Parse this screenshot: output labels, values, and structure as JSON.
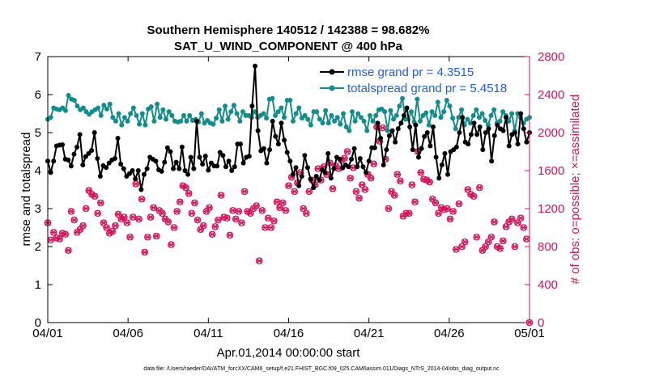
{
  "colors": {
    "rmse": "#000000",
    "totalspread": "#138c8c",
    "obs": "#d4145a",
    "legend_text": "#1f5fe0"
  },
  "chart_data": {
    "type": "line",
    "title": "Southern Hemisphere 140512 / 142388 = 98.682%",
    "subtitle": "SAT_U_WIND_COMPONENT @ 400 hPa",
    "xlabel": "Apr.01,2014 00:00:00 start",
    "ylabel": "rmse and totalspread",
    "y2label": "# of obs: o=possible; ×=assimilated",
    "footnote": "data file: /Users/raeder/DAI/ATM_forcXX/CAM6_setup/f.e21.FHIST_BGC.f09_025.CAM6assim.011/Diags_NTrS_2014-04/obs_diag_output.nc",
    "xlim": [
      0,
      30
    ],
    "ylim": [
      0,
      7
    ],
    "y2lim": [
      0,
      2800
    ],
    "xticks": [
      0,
      5,
      10,
      15,
      20,
      25,
      30
    ],
    "xtick_labels": [
      "04/01",
      "04/06",
      "04/11",
      "04/16",
      "04/21",
      "04/26",
      "05/01"
    ],
    "yticks": [
      0,
      1,
      2,
      3,
      4,
      5,
      6,
      7
    ],
    "ytick_labels": [
      "0",
      "1",
      "2",
      "3",
      "4",
      "5",
      "6",
      "7"
    ],
    "y2ticks": [
      0,
      400,
      800,
      1200,
      1600,
      2000,
      2400,
      2800
    ],
    "y2tick_labels": [
      "0",
      "400",
      "800",
      "1200",
      "1600",
      "2000",
      "2400",
      "2800"
    ],
    "grid": false,
    "legend_position": "top-right",
    "series": [
      {
        "name": "rmse grand pr = 4.3515",
        "axis": "left",
        "marker": "dot",
        "values": [
          4.25,
          3.95,
          4.25,
          4.65,
          4.67,
          4.68,
          4.3,
          4.28,
          4.12,
          4.43,
          4.62,
          4.95,
          4.15,
          4.37,
          4.45,
          4.53,
          5.0,
          4.32,
          3.85,
          4.13,
          4.08,
          4.2,
          4.28,
          4.32,
          4.85,
          4.17,
          4.05,
          3.85,
          3.92,
          4.0,
          3.78,
          4.0,
          3.5,
          3.9,
          4.05,
          4.35,
          4.3,
          4.25,
          4.02,
          3.98,
          4.22,
          4.6,
          4.5,
          4.05,
          4.22,
          4.05,
          4.62,
          4.0,
          3.9,
          4.35,
          4.05,
          5.3,
          4.35,
          4.17,
          4.38,
          4.01,
          4.2,
          4.12,
          4.12,
          4.48,
          4.4,
          4.1,
          4.25,
          4.0,
          4.1,
          4.7,
          4.7,
          4.2,
          4.35,
          4.38,
          5.7,
          6.75,
          5.05,
          4.52,
          4.58,
          4.2,
          4.55,
          5.3,
          4.9,
          4.7,
          5.25,
          4.8,
          4.48,
          4.25,
          3.9,
          4.08,
          3.6,
          3.85,
          4.4,
          4.08,
          3.78,
          3.55,
          3.85,
          3.75,
          4.02,
          3.95,
          4.45,
          3.8,
          4.05,
          4.35,
          4.3,
          4.07,
          4.15,
          4.1,
          4.3,
          4.58,
          4.1,
          4.32,
          4.1,
          3.95,
          4.25,
          4.6,
          4.6,
          5.25,
          4.85,
          4.15,
          4.55,
          4.92,
          5.05,
          4.75,
          5.1,
          5.25,
          5.45,
          5.65,
          5.15,
          4.55,
          5.2,
          4.35,
          4.58,
          4.9,
          5.0,
          4.65,
          5.15,
          4.35,
          3.8,
          4.15,
          4.45,
          3.9,
          4.5,
          4.55,
          4.62,
          5.0,
          5.4,
          4.75,
          4.7,
          4.95,
          5.25,
          4.95,
          5.15,
          4.55,
          5.0,
          5.1,
          4.25,
          4.92,
          5.2,
          5.1,
          5.05,
          5.4,
          4.65,
          4.95,
          5.0,
          4.7,
          5.5,
          5.1,
          4.75,
          5.0
        ]
      },
      {
        "name": "totalspread grand pr = 5.4518",
        "axis": "left",
        "marker": "dot",
        "values": [
          5.35,
          5.4,
          5.65,
          5.62,
          5.6,
          5.65,
          5.58,
          5.98,
          5.88,
          5.85,
          5.7,
          5.6,
          5.65,
          5.55,
          5.48,
          5.55,
          5.6,
          5.65,
          5.45,
          5.72,
          5.62,
          5.75,
          5.4,
          5.3,
          5.5,
          5.2,
          5.4,
          5.3,
          5.5,
          5.65,
          5.45,
          5.22,
          5.5,
          5.2,
          5.62,
          5.68,
          5.3,
          5.75,
          5.4,
          5.6,
          5.35,
          5.55,
          5.45,
          5.3,
          5.28,
          5.3,
          5.45,
          5.3,
          5.45,
          5.32,
          5.35,
          5.28,
          5.5,
          5.25,
          5.32,
          5.25,
          5.22,
          5.38,
          5.6,
          5.3,
          5.7,
          5.35,
          5.55,
          5.72,
          5.5,
          5.3,
          5.55,
          5.45,
          5.45,
          5.4,
          5.55,
          5.4,
          5.45,
          5.5,
          5.38,
          5.88,
          5.9,
          5.45,
          5.55,
          5.65,
          5.4,
          5.85,
          5.85,
          5.3,
          5.5,
          5.65,
          5.38,
          5.45,
          5.35,
          5.2,
          5.55,
          5.55,
          5.35,
          5.25,
          5.58,
          5.25,
          5.45,
          5.3,
          5.4,
          5.22,
          5.5,
          5.15,
          5.05,
          5.55,
          5.3,
          5.5,
          5.4,
          5.3,
          5.05,
          5.45,
          5.3,
          5.45,
          5.6,
          5.62,
          5.55,
          5.05,
          5.58,
          5.35,
          5.45,
          5.7,
          5.9,
          5.35,
          5.35,
          5.55,
          5.28,
          5.88,
          5.3,
          5.45,
          5.52,
          5.2,
          5.55,
          5.45,
          5.8,
          5.4,
          5.55,
          5.85,
          5.7,
          5.38,
          5.1,
          5.4,
          5.6,
          5.2,
          5.35,
          5.25,
          5.45,
          5.6,
          5.4,
          5.5,
          5.32,
          5.2,
          5.45,
          5.6,
          5.25,
          5.3,
          5.55,
          5.45,
          5.3,
          5.5,
          5.05,
          5.5,
          5.4,
          5.25,
          5.35,
          5.4
        ]
      },
      {
        "name": "possible",
        "axis": "right",
        "marker": "o",
        "values": [
          1050,
          870,
          950,
          890,
          880,
          940,
          930,
          760,
          1170,
          1080,
          950,
          980,
          1020,
          1200,
          1390,
          1350,
          1330,
          1150,
          1260,
          1050,
          1000,
          940,
          960,
          1020,
          1140,
          1090,
          1110,
          1050,
          900,
          1110,
          1460,
          1090,
          1300,
          740,
          900,
          1110,
          1210,
          910,
          1180,
          1150,
          1090,
          1060,
          820,
          1000,
          1170,
          1270,
          1440,
          1420,
          1360,
          1150,
          1260,
          1080,
          980,
          1020,
          1170,
          1210,
          930,
          1010,
          1080,
          1340,
          1110,
          1100,
          920,
          1180,
          1090,
          1170,
          1050,
          1380,
          1170,
          1150,
          1200,
          1230,
          650,
          1180,
          1000,
          1100,
          1000,
          1070,
          1270,
          1210,
          1260,
          1180,
          1440,
          1530,
          1380,
          1470,
          1580,
          1200,
          1150,
          1380,
          1500,
          1450,
          1620,
          1500,
          1640,
          1560,
          1680,
          1410,
          1650,
          1620,
          1710,
          1730,
          1800,
          1520,
          1630,
          1380,
          1310,
          1450,
          1400,
          1560,
          1520,
          1670,
          2060,
          1910,
          2050,
          1720,
          1200,
          1380,
          1340,
          1560,
          1490,
          1120,
          1150,
          1150,
          1450,
          1270,
          1800,
          1580,
          1510,
          1500,
          1480,
          1300,
          1260,
          1150,
          1210,
          1190,
          1200,
          1090,
          1170,
          770,
          1250,
          800,
          850,
          1400,
          1350,
          1330,
          900,
          1420,
          760,
          800,
          850,
          900,
          1060,
          800,
          780,
          860,
          1010,
          1060,
          1090,
          800,
          1050,
          1100,
          1000,
          880,
          0
        ]
      }
    ]
  }
}
